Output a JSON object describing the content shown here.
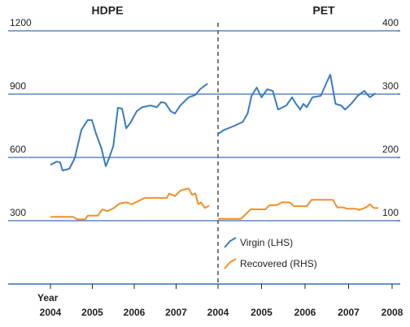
{
  "chart_data": {
    "type": "line",
    "xlabel": "Year",
    "ylim": [
      0,
      1200
    ],
    "yticks": [
      300,
      600,
      900,
      1200
    ],
    "y2lim": [
      0,
      400
    ],
    "y2ticks": [
      100,
      200,
      300,
      400
    ],
    "grid": true,
    "legend": "lower-right",
    "series": [
      {
        "name": "Virgin (LHS)",
        "color": "#3a7cc0",
        "axis": "y"
      },
      {
        "name": "Recovered (RHS)",
        "color": "#f0902a",
        "axis": "y2"
      }
    ],
    "panels": [
      {
        "title": "HDPE",
        "xlim": [
          2004,
          2008
        ],
        "xticks": [
          2004,
          2005,
          2006,
          2007
        ],
        "series": [
          {
            "x": [
              2004.0,
              2004.15,
              2004.23,
              2004.29,
              2004.45,
              2004.58,
              2004.74,
              2004.89,
              2004.99,
              2005.09,
              2005.22,
              2005.32,
              2005.4,
              2005.5,
              2005.61,
              2005.71,
              2005.81,
              2005.9,
              2006.06,
              2006.19,
              2006.39,
              2006.54,
              2006.64,
              2006.74,
              2006.87,
              2006.97,
              2007.1,
              2007.3,
              2007.46,
              2007.57,
              2007.75
            ],
            "values": [
              565,
              580,
              577,
              538,
              546,
              596,
              731,
              777,
              777,
              712,
              642,
              558,
              596,
              654,
              835,
              831,
              738,
              762,
              819,
              838,
              846,
              838,
              862,
              858,
              819,
              808,
              846,
              885,
              896,
              923,
              950
            ]
          },
          {
            "x": [
              2004.0,
              2004.54,
              2004.64,
              2004.83,
              2004.89,
              2005.13,
              2005.24,
              2005.36,
              2005.51,
              2005.65,
              2005.81,
              2005.94,
              2006.1,
              2006.25,
              2006.64,
              2006.78,
              2006.83,
              2006.97,
              2007.11,
              2007.3,
              2007.38,
              2007.46,
              2007.53,
              2007.59,
              2007.69,
              2007.79
            ],
            "values": [
              106,
              106,
              102,
              102,
              108,
              108,
              118,
              115,
              120,
              127,
              129,
              126,
              131,
              136,
              136,
              136,
              143,
              139,
              148,
              151,
              141,
              143,
              126,
              129,
              120,
              124
            ]
          }
        ]
      },
      {
        "title": "PET",
        "xlim": [
          2004,
          2008
        ],
        "xticks": [
          2004,
          2005,
          2006,
          2007,
          2008
        ],
        "series": [
          {
            "x": [
              2004.0,
              2004.15,
              2004.38,
              2004.57,
              2004.68,
              2004.77,
              2004.89,
              2005.0,
              2005.13,
              2005.26,
              2005.38,
              2005.57,
              2005.7,
              2005.79,
              2005.89,
              2005.96,
              2006.04,
              2006.17,
              2006.36,
              2006.51,
              2006.58,
              2006.7,
              2006.83,
              2006.92,
              2007.06,
              2007.21,
              2007.36,
              2007.49,
              2007.62
            ],
            "values": [
              712,
              731,
              750,
              769,
              808,
              892,
              931,
              885,
              923,
              915,
              827,
              846,
              885,
              854,
              827,
              854,
              838,
              885,
              892,
              962,
              992,
              854,
              846,
              827,
              854,
              892,
              915,
              885,
              904
            ]
          },
          {
            "x": [
              2004.0,
              2004.53,
              2004.75,
              2005.09,
              2005.17,
              2005.36,
              2005.47,
              2005.64,
              2005.75,
              2006.04,
              2006.15,
              2006.64,
              2006.74,
              2006.87,
              2006.96,
              2007.15,
              2007.25,
              2007.4,
              2007.49,
              2007.58,
              2007.68
            ],
            "values": [
              103,
              103,
              118,
              118,
              124,
              125,
              129,
              129,
              123,
              123,
              133,
              133,
              121,
              121,
              119,
              119,
              117,
              121,
              126,
              120,
              120
            ]
          }
        ]
      }
    ]
  }
}
